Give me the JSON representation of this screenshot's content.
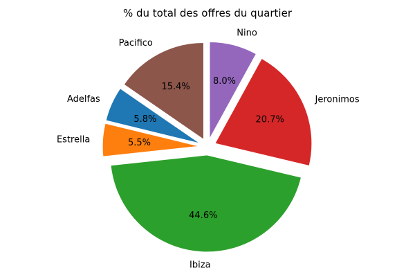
{
  "chart_data": {
    "type": "pie",
    "title": "% du total des offres du quartier",
    "categories": [
      "Nino",
      "Jeronimos",
      "Ibiza",
      "Estrella",
      "Adelfas",
      "Pacifico"
    ],
    "values": [
      8.0,
      20.7,
      44.6,
      5.5,
      5.8,
      15.4
    ],
    "slices": [
      {
        "label": "Nino",
        "value": 8.0,
        "pct_label": "8.0%",
        "color": "#9467bd"
      },
      {
        "label": "Jeronimos",
        "value": 20.7,
        "pct_label": "20.7%",
        "color": "#d62728"
      },
      {
        "label": "Ibiza",
        "value": 44.6,
        "pct_label": "44.6%",
        "color": "#2ca02c"
      },
      {
        "label": "Estrella",
        "value": 5.5,
        "pct_label": "5.5%",
        "color": "#ff7f0e"
      },
      {
        "label": "Adelfas",
        "value": 5.8,
        "pct_label": "5.8%",
        "color": "#1f77b4"
      },
      {
        "label": "Pacifico",
        "value": 15.4,
        "pct_label": "15.4%",
        "color": "#8c564b"
      }
    ],
    "start_angle_deg": 90,
    "direction": "clockwise",
    "explode": 0.085,
    "label_color": "#000000",
    "background": "#ffffff",
    "legend": "none",
    "grid": "off"
  }
}
